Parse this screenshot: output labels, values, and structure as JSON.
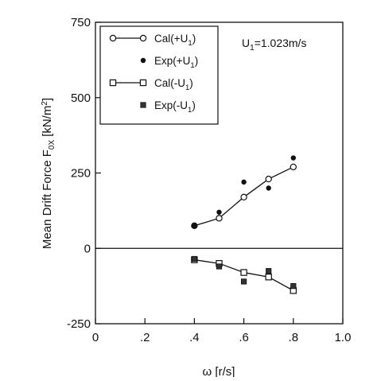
{
  "chart_data": {
    "type": "scatter",
    "xlabel": "ω [r/s]",
    "ylabel": "Mean Drift Force F",
    "ylabel_sub": "0X",
    "ylabel_unit": "[kN/m",
    "ylabel_unit_sup": "2",
    "ylabel_unit_close": "]",
    "xlim": [
      0,
      1.0
    ],
    "ylim": [
      -250,
      750
    ],
    "xticks": [
      {
        "value": 0,
        "label": "0"
      },
      {
        "value": 0.2,
        "label": ".2"
      },
      {
        "value": 0.4,
        "label": ".4"
      },
      {
        "value": 0.6,
        "label": ".6"
      },
      {
        "value": 0.8,
        "label": ".8"
      },
      {
        "value": 1.0,
        "label": "1.0"
      }
    ],
    "yticks": [
      {
        "value": -250,
        "label": "-250"
      },
      {
        "value": 0,
        "label": "0"
      },
      {
        "value": 250,
        "label": "250"
      },
      {
        "value": 500,
        "label": "500"
      },
      {
        "value": 750,
        "label": "750"
      }
    ],
    "annotation": {
      "text": "U",
      "sub": "1",
      "tail": "=1.023m/s"
    },
    "legend_position": "top-left",
    "series": [
      {
        "name": "Cal(+U",
        "name_sub": "1",
        "name_close": ")",
        "style": "line-open-circle",
        "x": [
          0.4,
          0.5,
          0.6,
          0.7,
          0.8
        ],
        "y": [
          75,
          100,
          170,
          230,
          270
        ]
      },
      {
        "name": "Exp(+U",
        "name_sub": "1",
        "name_close": ")",
        "style": "filled-circle",
        "x": [
          0.4,
          0.5,
          0.6,
          0.7,
          0.8
        ],
        "y": [
          75,
          120,
          220,
          200,
          300
        ]
      },
      {
        "name": "Cal(-U",
        "name_sub": "1",
        "name_close": ")",
        "style": "line-open-square",
        "x": [
          0.4,
          0.5,
          0.6,
          0.7,
          0.8
        ],
        "y": [
          -38,
          -50,
          -80,
          -95,
          -140
        ]
      },
      {
        "name": "Exp(-U",
        "name_sub": "1",
        "name_close": ")",
        "style": "filled-square",
        "x": [
          0.4,
          0.5,
          0.6,
          0.7,
          0.8
        ],
        "y": [
          -35,
          -60,
          -110,
          -75,
          -125
        ]
      }
    ]
  }
}
